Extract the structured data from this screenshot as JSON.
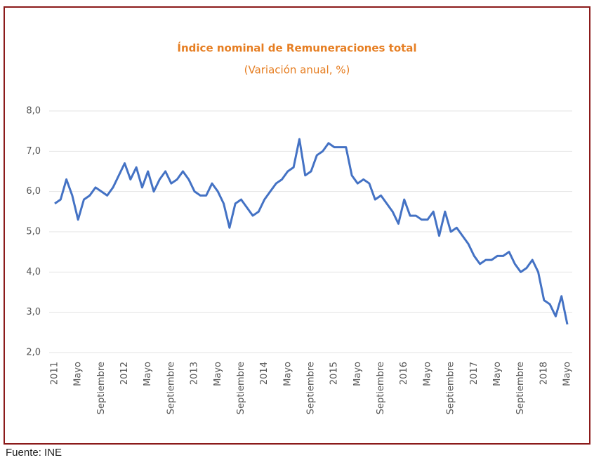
{
  "chart_data": {
    "type": "line",
    "title": "Índice nominal de Remuneraciones total",
    "subtitle": "(Variación anual, %)",
    "source": "Fuente: INE",
    "categories": [
      "2011",
      null,
      null,
      null,
      "Mayo",
      null,
      null,
      null,
      "Septiembre",
      null,
      null,
      null,
      "2012",
      null,
      null,
      null,
      "Mayo",
      null,
      null,
      null,
      "Septiembre",
      null,
      null,
      null,
      "2013",
      null,
      null,
      null,
      "Mayo",
      null,
      null,
      null,
      "Septiembre",
      null,
      null,
      null,
      "2014",
      null,
      null,
      null,
      "Mayo",
      null,
      null,
      null,
      "Septiembre",
      null,
      null,
      null,
      "2015",
      null,
      null,
      null,
      "Mayo",
      null,
      null,
      null,
      "Septiembre",
      null,
      null,
      null,
      "2016",
      null,
      null,
      null,
      "Mayo",
      null,
      null,
      null,
      "Septiembre",
      null,
      null,
      null,
      "2017",
      null,
      null,
      null,
      "Mayo",
      null,
      null,
      null,
      "Septiembre",
      null,
      null,
      null,
      "2018",
      null,
      null,
      null,
      "Mayo"
    ],
    "series": [
      {
        "color": "#4472c4",
        "values": [
          5.7,
          5.8,
          6.3,
          5.9,
          5.3,
          5.8,
          5.9,
          6.1,
          6.0,
          5.9,
          6.1,
          6.4,
          6.7,
          6.3,
          6.6,
          6.1,
          6.5,
          6.0,
          6.3,
          6.5,
          6.2,
          6.3,
          6.5,
          6.3,
          6.0,
          5.9,
          5.9,
          6.2,
          6.0,
          5.7,
          5.1,
          5.7,
          5.8,
          5.6,
          5.4,
          5.5,
          5.8,
          6.0,
          6.2,
          6.3,
          6.5,
          6.6,
          7.3,
          6.4,
          6.5,
          6.9,
          7.0,
          7.2,
          7.1,
          7.1,
          7.1,
          6.4,
          6.2,
          6.3,
          6.2,
          5.8,
          5.9,
          5.7,
          5.5,
          5.2,
          5.8,
          5.4,
          5.4,
          5.3,
          5.3,
          5.5,
          4.9,
          5.5,
          5.0,
          5.1,
          4.9,
          4.7,
          4.4,
          4.2,
          4.3,
          4.3,
          4.4,
          4.4,
          4.5,
          4.2,
          4.0,
          4.1,
          4.3,
          4.0,
          3.3,
          3.2,
          2.9,
          3.4,
          2.7
        ]
      }
    ],
    "ylim": [
      2,
      8
    ],
    "yticks": [
      {
        "value": 2,
        "label": "2,0"
      },
      {
        "value": 3,
        "label": "3,0"
      },
      {
        "value": 4,
        "label": "4,0"
      },
      {
        "value": 5,
        "label": "5,0"
      },
      {
        "value": 6,
        "label": "6,0"
      },
      {
        "value": 7,
        "label": "7,0"
      },
      {
        "value": 8,
        "label": "8,0"
      }
    ],
    "grid": true
  }
}
